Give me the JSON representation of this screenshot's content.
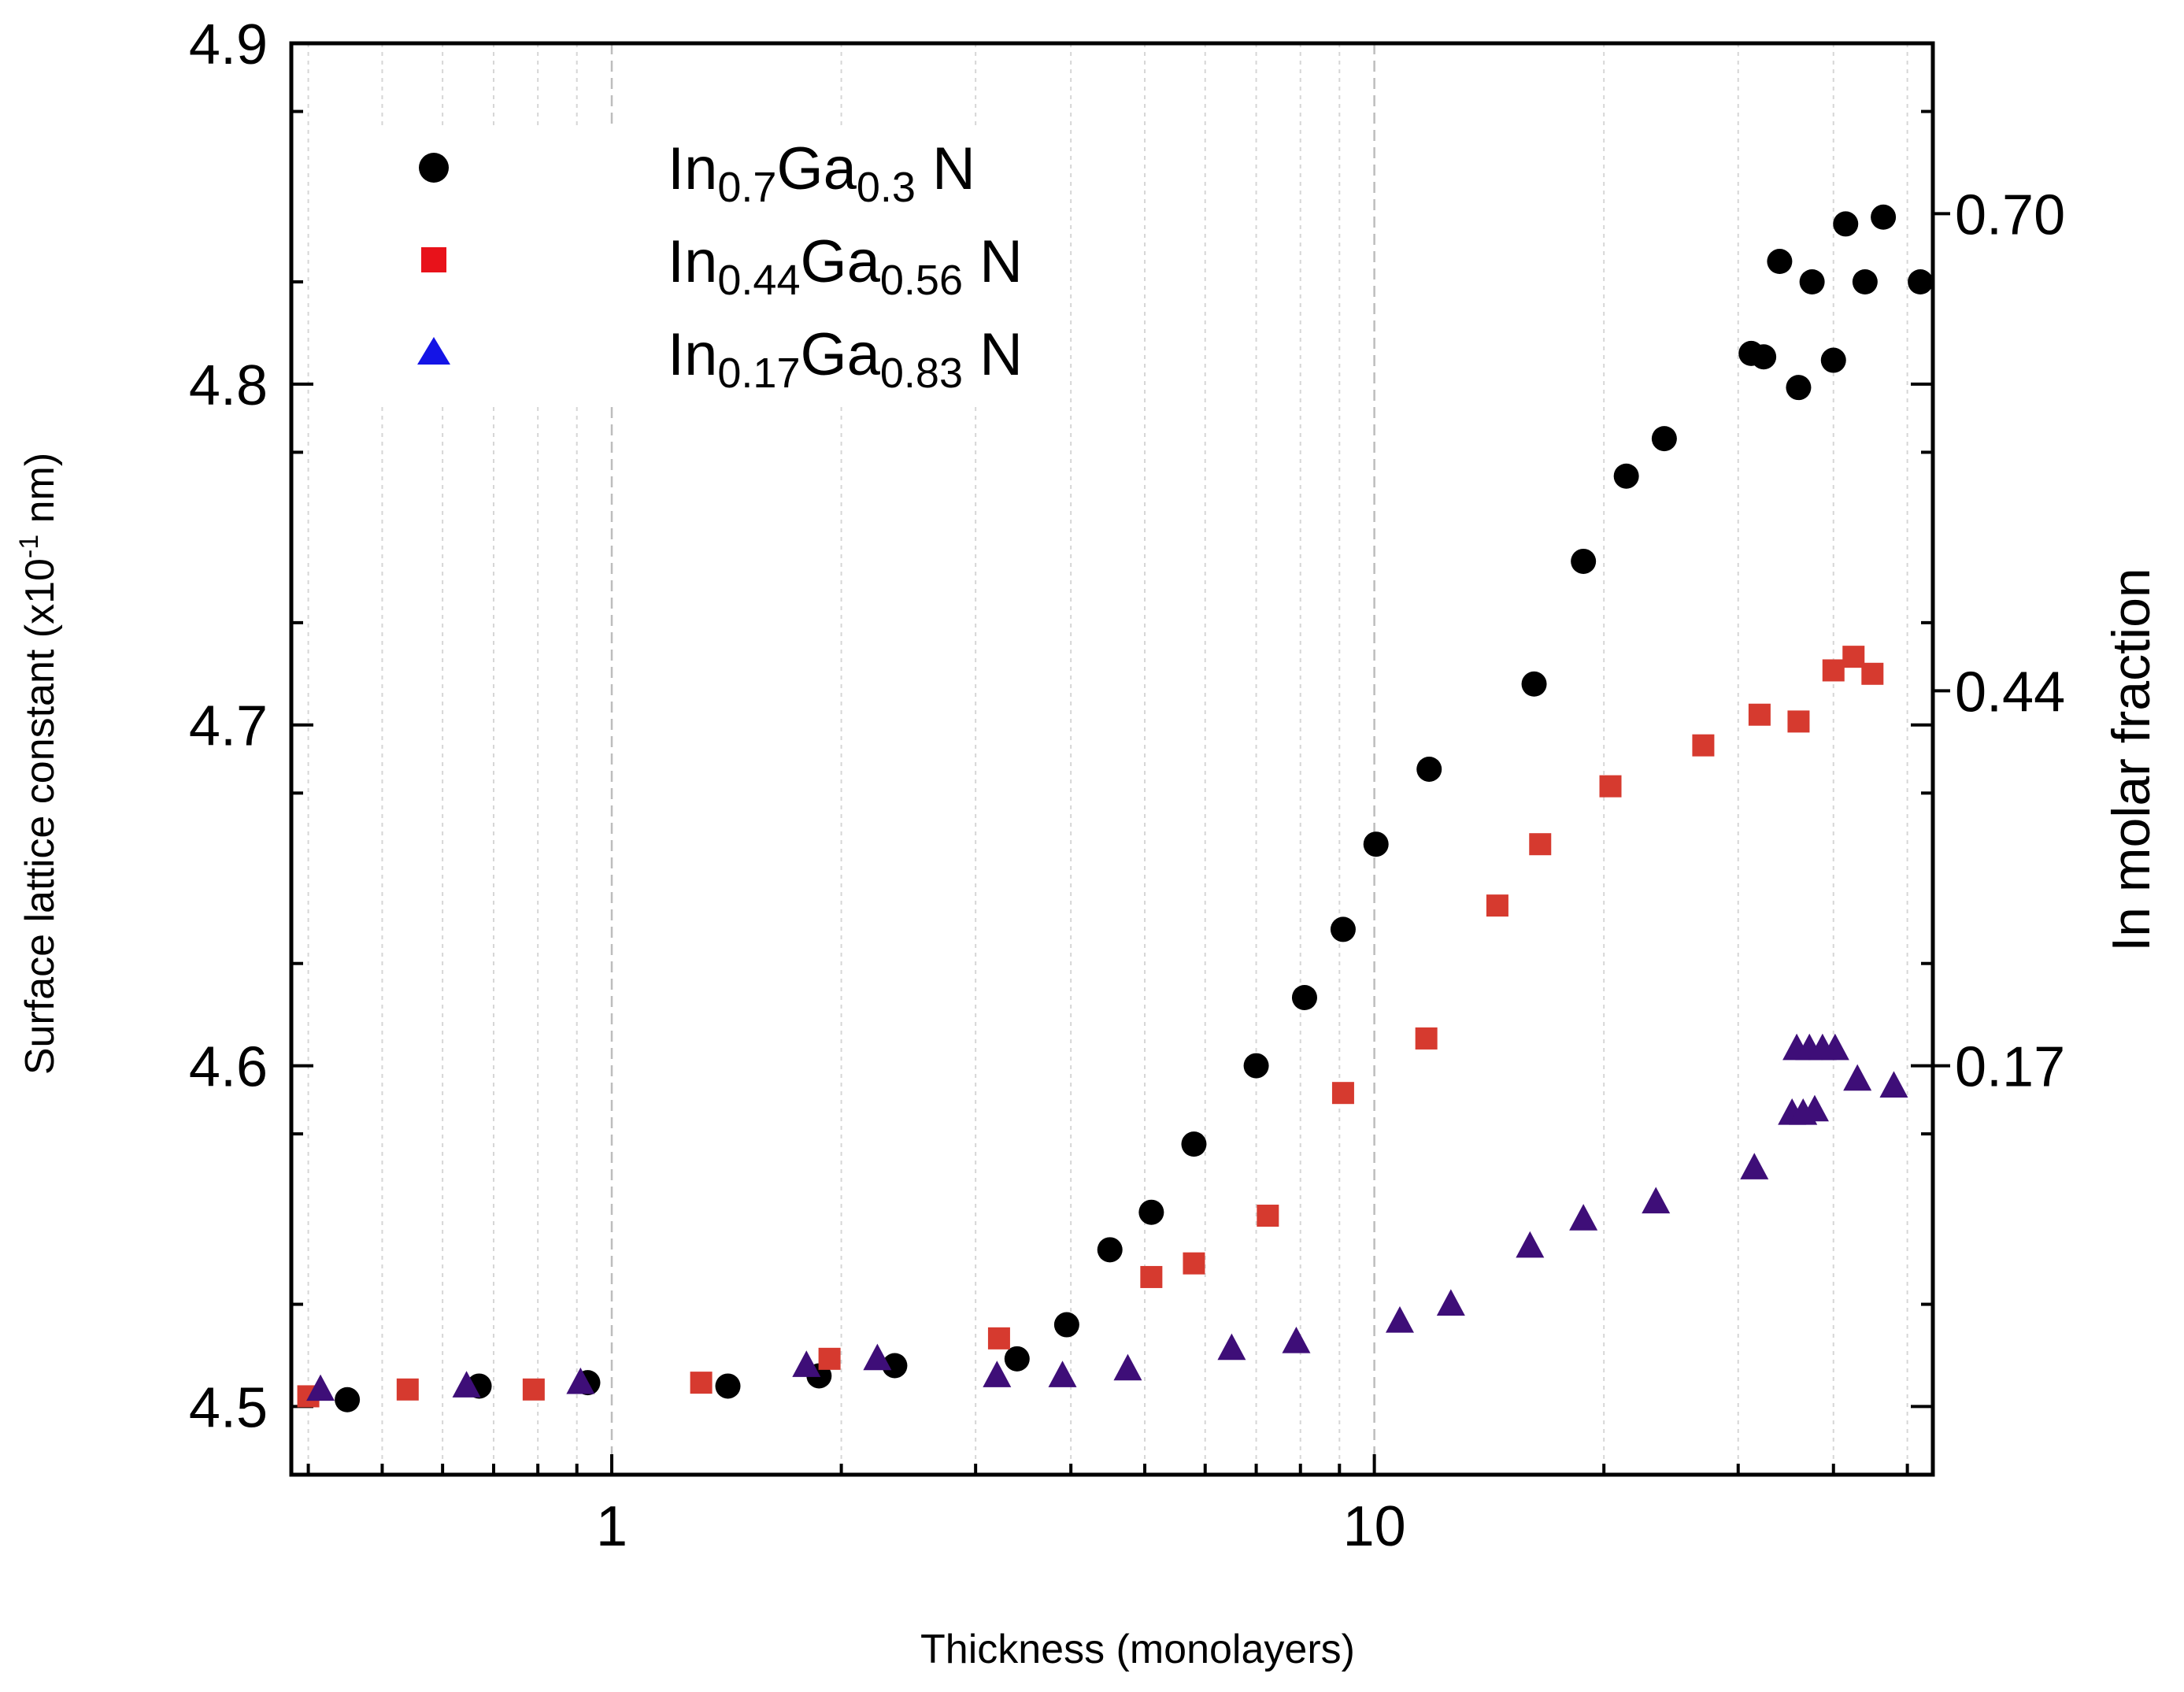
{
  "chart_data": {
    "type": "scatter",
    "title": "",
    "xlabel": "Thickness (monolayers)",
    "ylabel": "Surface lattice constant (x10-1 nm)",
    "ylabel_parts": {
      "before": "Surface lattice constant (x10",
      "sup": "-1",
      "after": " nm)"
    },
    "y2label": "In molar fraction",
    "x_scale": "log",
    "xlim": [
      0.38,
      54
    ],
    "ylim": [
      4.48,
      4.9
    ],
    "x_ticks": [
      {
        "value": 1,
        "label": "1"
      },
      {
        "value": 10,
        "label": "10"
      }
    ],
    "y_ticks": [
      {
        "value": 4.5,
        "label": "4.5"
      },
      {
        "value": 4.6,
        "label": "4.6"
      },
      {
        "value": 4.7,
        "label": "4.7"
      },
      {
        "value": 4.8,
        "label": "4.8"
      },
      {
        "value": 4.9,
        "label": "4.9"
      }
    ],
    "right_ticks": [
      {
        "y_value": 4.6,
        "label": "0.17"
      },
      {
        "y_value": 4.71,
        "label": "0.44"
      },
      {
        "y_value": 4.85,
        "label": "0.70"
      }
    ],
    "grid": "vertical-dotted",
    "legend_position": "top-left",
    "series": [
      {
        "name": "In0.7Ga0.3 N",
        "legend": {
          "base1": "In",
          "sub1": "0.7",
          "base2": "Ga",
          "sub2": "0.3",
          "suffix": " N"
        },
        "marker": "circle",
        "color": "#000000",
        "points": [
          [
            0.45,
            4.502
          ],
          [
            0.67,
            4.506
          ],
          [
            0.93,
            4.507
          ],
          [
            1.42,
            4.506
          ],
          [
            1.87,
            4.509
          ],
          [
            2.35,
            4.512
          ],
          [
            3.4,
            4.514
          ],
          [
            3.95,
            4.524
          ],
          [
            4.5,
            4.546
          ],
          [
            5.1,
            4.557
          ],
          [
            5.8,
            4.577
          ],
          [
            7.0,
            4.6
          ],
          [
            8.1,
            4.62
          ],
          [
            9.1,
            4.64
          ],
          [
            10.05,
            4.665
          ],
          [
            11.8,
            4.687
          ],
          [
            16.2,
            4.712
          ],
          [
            18.8,
            4.748
          ],
          [
            21.4,
            4.773
          ],
          [
            24.0,
            4.784
          ],
          [
            31.2,
            4.809
          ],
          [
            32.4,
            4.808
          ],
          [
            34.0,
            4.836
          ],
          [
            36.0,
            4.799
          ],
          [
            37.5,
            4.83
          ],
          [
            40.0,
            4.807
          ],
          [
            41.5,
            4.847
          ],
          [
            44.0,
            4.83
          ],
          [
            46.5,
            4.849
          ],
          [
            52.0,
            4.83
          ]
        ]
      },
      {
        "name": "In0.44Ga0.56 N",
        "legend": {
          "base1": "In",
          "sub1": "0.44",
          "base2": "Ga",
          "sub2": "0.56",
          "suffix": " N"
        },
        "marker": "square",
        "color": "#d63a2f",
        "points": [
          [
            0.4,
            4.503
          ],
          [
            0.54,
            4.505
          ],
          [
            0.79,
            4.505
          ],
          [
            1.31,
            4.507
          ],
          [
            1.93,
            4.514
          ],
          [
            3.22,
            4.52
          ],
          [
            5.1,
            4.538
          ],
          [
            5.8,
            4.542
          ],
          [
            7.25,
            4.556
          ],
          [
            9.1,
            4.592
          ],
          [
            11.7,
            4.608
          ],
          [
            14.5,
            4.647
          ],
          [
            16.5,
            4.665
          ],
          [
            20.4,
            4.682
          ],
          [
            27.0,
            4.694
          ],
          [
            32.0,
            4.703
          ],
          [
            36.0,
            4.701
          ],
          [
            40.0,
            4.716
          ],
          [
            42.5,
            4.72
          ],
          [
            45.0,
            4.715
          ]
        ]
      },
      {
        "name": "In0.17Ga0.83 N",
        "legend": {
          "base1": "In",
          "sub1": "0.17",
          "base2": "Ga",
          "sub2": "0.83",
          "suffix": " N"
        },
        "marker": "triangle",
        "legend_color": "#1414e6",
        "color": "#3e0e78",
        "points": [
          [
            0.415,
            4.505
          ],
          [
            0.645,
            4.506
          ],
          [
            0.91,
            4.507
          ],
          [
            1.8,
            4.512
          ],
          [
            2.23,
            4.514
          ],
          [
            3.2,
            4.509
          ],
          [
            3.9,
            4.509
          ],
          [
            4.75,
            4.511
          ],
          [
            6.5,
            4.517
          ],
          [
            7.9,
            4.519
          ],
          [
            10.8,
            4.525
          ],
          [
            12.6,
            4.53
          ],
          [
            16.0,
            4.547
          ],
          [
            18.8,
            4.555
          ],
          [
            23.4,
            4.56
          ],
          [
            31.5,
            4.57
          ],
          [
            35.3,
            4.586
          ],
          [
            36.5,
            4.586
          ],
          [
            37.8,
            4.587
          ],
          [
            35.8,
            4.605
          ],
          [
            37.2,
            4.605
          ],
          [
            38.7,
            4.605
          ],
          [
            40.2,
            4.605
          ],
          [
            43.0,
            4.596
          ],
          [
            48.0,
            4.594
          ]
        ]
      }
    ]
  }
}
